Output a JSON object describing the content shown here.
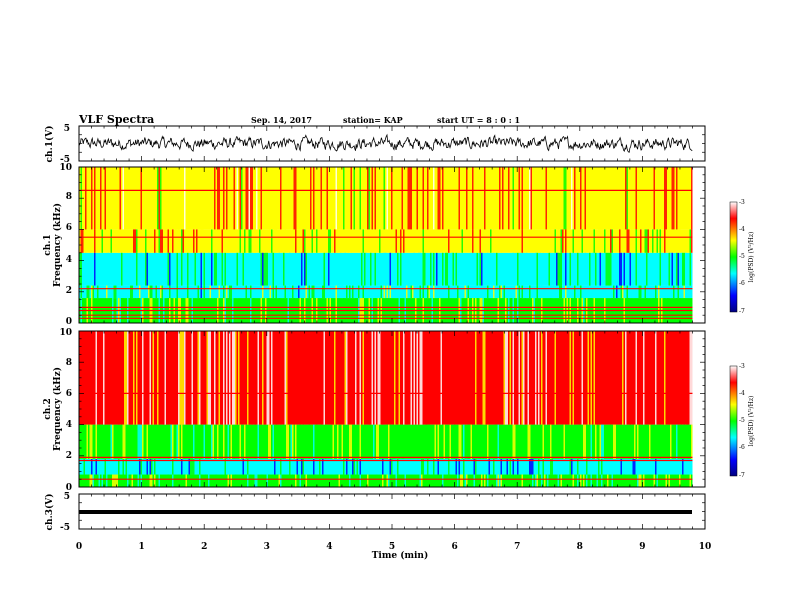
{
  "header": {
    "title": "VLF Spectra",
    "date": "Sep. 14, 2017",
    "station": "station= KAP",
    "start": "start  UT  =   8  :  0  :  1"
  },
  "chart_data": [
    {
      "type": "line",
      "panel": "ch.1 waveform",
      "ylabel": "ch.1(V)",
      "ylim": [
        -5,
        5
      ],
      "yticks": [
        "5",
        "-5"
      ],
      "xlim": [
        0,
        10
      ],
      "mean": 0,
      "amplitude": 1.6,
      "duration_min": 9.8
    },
    {
      "type": "heatmap",
      "panel": "ch.1 spectrogram",
      "ylabel_top": "ch.1",
      "ylabel": "Frequency  (kHz)",
      "ylim": [
        0,
        10
      ],
      "yticks": [
        "0",
        "2",
        "4",
        "6",
        "8",
        "10"
      ],
      "xlim": [
        0,
        9.8
      ],
      "colorbar": {
        "label": "log(PSD) (V²/Hz)",
        "range": [
          -7,
          -3
        ],
        "ticks": [
          "-3",
          "-4",
          "-5",
          "-6",
          "-7"
        ],
        "colors": [
          "#000080",
          "#0000ff",
          "#00ffff",
          "#00ff00",
          "#ffff00",
          "#ff0000",
          "#ffffff"
        ]
      },
      "bands": [
        {
          "from_khz": 0,
          "to_khz": 1.6,
          "level": -5.0
        },
        {
          "from_khz": 1.6,
          "to_khz": 2.4,
          "level": -5.4
        },
        {
          "from_khz": 2.4,
          "to_khz": 4.5,
          "level": -5.6
        },
        {
          "from_khz": 4.5,
          "to_khz": 6.0,
          "level": -4.6
        },
        {
          "from_khz": 6.0,
          "to_khz": 10.0,
          "level": -4.2
        }
      ],
      "lines_khz": [
        0.3,
        0.5,
        0.8,
        1.0,
        2.2,
        5.5,
        8.5
      ]
    },
    {
      "type": "heatmap",
      "panel": "ch.2 spectrogram",
      "ylabel_top": "ch.2",
      "ylabel": "Frequency  (kHz)",
      "ylim": [
        0,
        10
      ],
      "yticks": [
        "0",
        "2",
        "4",
        "6",
        "8",
        "10"
      ],
      "xlim": [
        0,
        9.8
      ],
      "colorbar": {
        "label": "log(PSD) (V²/Hz)",
        "range": [
          -7,
          -3
        ],
        "ticks": [
          "-3",
          "-4",
          "-5",
          "-6",
          "-7"
        ],
        "colors": [
          "#000080",
          "#0000ff",
          "#00ffff",
          "#00ff00",
          "#ffff00",
          "#ff0000",
          "#ffffff"
        ]
      },
      "bands": [
        {
          "from_khz": 0,
          "to_khz": 0.8,
          "level": -5.2
        },
        {
          "from_khz": 0.8,
          "to_khz": 1.8,
          "level": -5.7
        },
        {
          "from_khz": 1.8,
          "to_khz": 4.0,
          "level": -5.0
        },
        {
          "from_khz": 4.0,
          "to_khz": 10.0,
          "level": -3.8
        }
      ],
      "lines_khz": [
        0.5,
        1.7,
        1.9,
        6.0
      ]
    },
    {
      "type": "line",
      "panel": "ch.3 waveform",
      "ylabel": "ch.3(V)",
      "ylim": [
        -5,
        5
      ],
      "yticks": [
        "5",
        "-5"
      ],
      "xlim": [
        0,
        10
      ],
      "constant_value": 0,
      "xlabel": "Time  (min)",
      "xticks": [
        "0",
        "1",
        "2",
        "3",
        "4",
        "5",
        "6",
        "7",
        "8",
        "9",
        "10"
      ]
    }
  ]
}
